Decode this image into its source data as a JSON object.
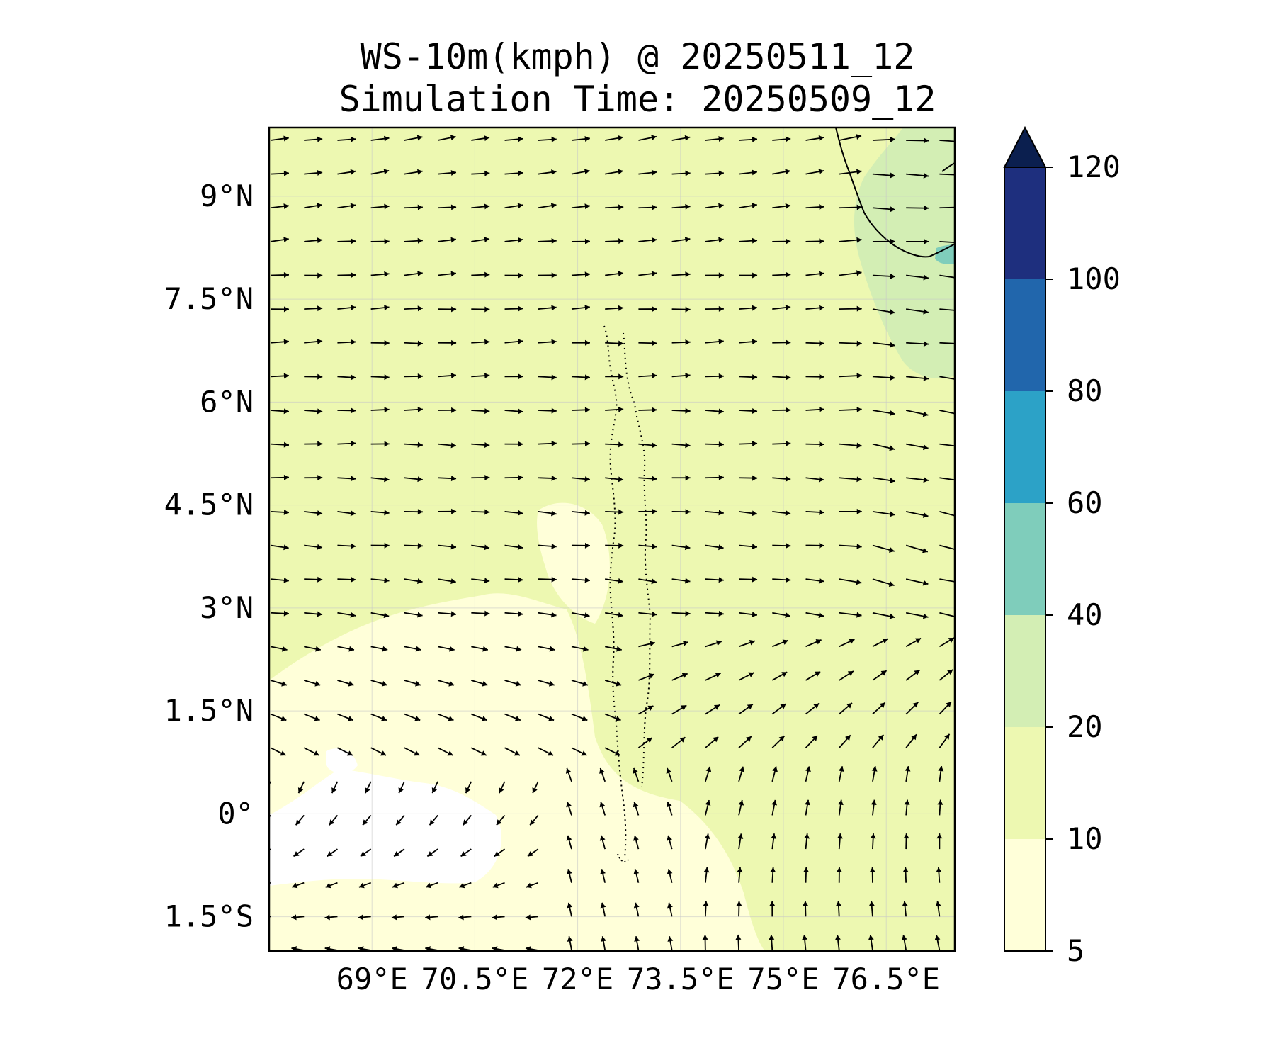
{
  "title": {
    "line1": "WS-10m(kmph) @ 20250511_12",
    "line2": "Simulation Time: 20250509_12"
  },
  "map": {
    "lon_range": [
      67.5,
      77.5
    ],
    "lat_range": [
      -2.0,
      10.0
    ],
    "lat_ticks": [
      {
        "value": 9,
        "label": "9°N"
      },
      {
        "value": 7.5,
        "label": "7.5°N"
      },
      {
        "value": 6,
        "label": "6°N"
      },
      {
        "value": 4.5,
        "label": "4.5°N"
      },
      {
        "value": 3,
        "label": "3°N"
      },
      {
        "value": 1.5,
        "label": "1.5°N"
      },
      {
        "value": 0,
        "label": "0°"
      },
      {
        "value": -1.5,
        "label": "1.5°S"
      }
    ],
    "lon_ticks": [
      {
        "value": 69,
        "label": "69°E"
      },
      {
        "value": 70.5,
        "label": "70.5°E"
      },
      {
        "value": 72,
        "label": "72°E"
      },
      {
        "value": 73.5,
        "label": "73.5°E"
      },
      {
        "value": 75,
        "label": "75°E"
      },
      {
        "value": 76.5,
        "label": "76.5°E"
      }
    ],
    "grid": true
  },
  "colorbar": {
    "levels": [
      5,
      10,
      20,
      40,
      60,
      80,
      100,
      120
    ],
    "labels": [
      "5",
      "10",
      "20",
      "40",
      "60",
      "80",
      "100",
      "120"
    ],
    "colors": [
      "#ffffd9",
      "#edf8b1",
      "#d3eeb4",
      "#7fcdbb",
      "#2ca2c7",
      "#2166ac",
      "#1e2f7e"
    ],
    "extend_color": "#0b1f4f",
    "extend": "max"
  },
  "colors": {
    "background_field": "#edf8b1",
    "calm_field": "#ffffd9",
    "moderate_field": "#d3eeb4",
    "strong_field": "#7fcdbb"
  }
}
